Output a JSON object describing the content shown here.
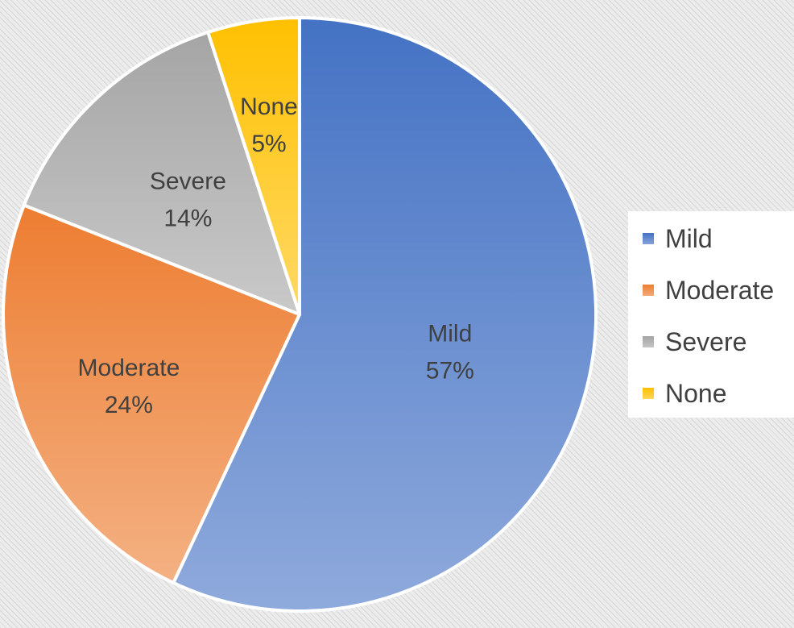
{
  "chart_data": {
    "type": "pie",
    "slices": [
      {
        "label": "Mild",
        "value": 57,
        "display": "57%",
        "color": "#4472C4"
      },
      {
        "label": "Moderate",
        "value": 24,
        "display": "24%",
        "color": "#ED7D31"
      },
      {
        "label": "Severe",
        "value": 14,
        "display": "14%",
        "color": "#A5A5A5"
      },
      {
        "label": "None",
        "value": 5,
        "display": "5%",
        "color": "#FFC000"
      }
    ],
    "legend": {
      "position": "right",
      "entries": [
        "Mild",
        "Moderate",
        "Severe",
        "None"
      ]
    }
  }
}
